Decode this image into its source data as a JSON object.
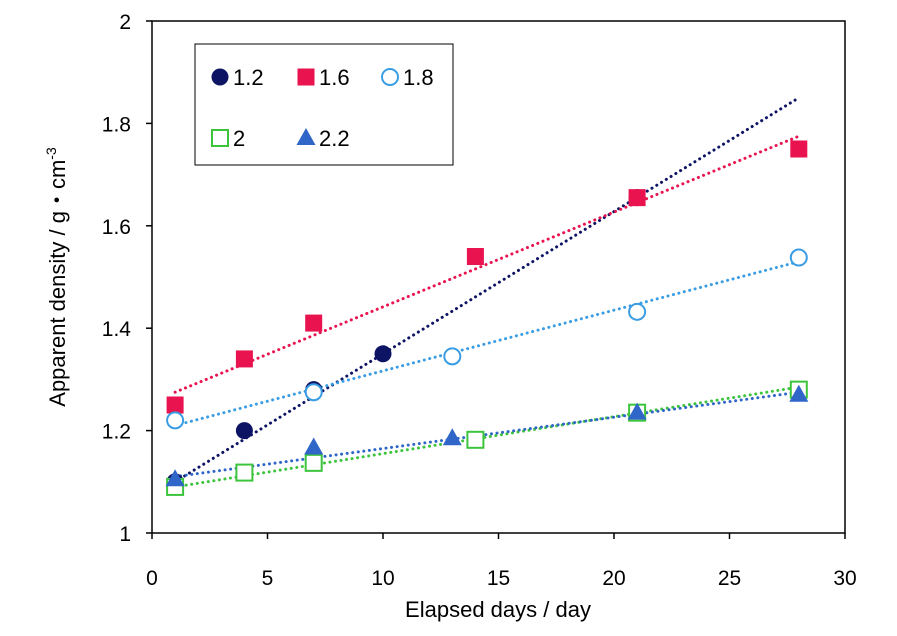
{
  "chart_data": {
    "type": "scatter",
    "xlabel": "Elapsed days / day",
    "ylabel": "Apparent density / g・cm",
    "ylabel_superscript": "-3",
    "xlim": [
      0,
      30
    ],
    "ylim": [
      1,
      2
    ],
    "x_ticks": [
      "0",
      "5",
      "10",
      "15",
      "20",
      "25",
      "30"
    ],
    "y_ticks": [
      "1",
      "1.2",
      "1.4",
      "1.6",
      "1.8",
      "2"
    ],
    "grid": false,
    "legend_position": "top-left",
    "trendlines": "dotted linear",
    "series": [
      {
        "name": "1.2",
        "marker": "circle-filled",
        "color": "#0d1463",
        "points": [
          [
            1,
            1.1
          ],
          [
            4,
            1.2
          ],
          [
            7,
            1.28
          ],
          [
            10,
            1.35
          ],
          [
            21,
            1.655
          ]
        ],
        "trend": [
          [
            1,
            1.1
          ],
          [
            28,
            1.85
          ]
        ]
      },
      {
        "name": "1.6",
        "marker": "square-filled",
        "color": "#e8134f",
        "points": [
          [
            1,
            1.25
          ],
          [
            4,
            1.34
          ],
          [
            7,
            1.41
          ],
          [
            14,
            1.54
          ],
          [
            21,
            1.655
          ],
          [
            28,
            1.75
          ]
        ],
        "trend": [
          [
            1,
            1.275
          ],
          [
            28,
            1.775
          ]
        ]
      },
      {
        "name": "1.8",
        "marker": "circle-open",
        "color": "#3a9de3",
        "points": [
          [
            1,
            1.22
          ],
          [
            7,
            1.275
          ],
          [
            13,
            1.345
          ],
          [
            21,
            1.432
          ],
          [
            28,
            1.538
          ]
        ],
        "trend": [
          [
            1,
            1.21
          ],
          [
            28,
            1.53
          ]
        ]
      },
      {
        "name": "2",
        "marker": "square-open",
        "color": "#3dc43d",
        "points": [
          [
            1,
            1.09
          ],
          [
            4,
            1.118
          ],
          [
            7,
            1.137
          ],
          [
            14,
            1.182
          ],
          [
            21,
            1.235
          ],
          [
            28,
            1.28
          ]
        ],
        "trend": [
          [
            1,
            1.09
          ],
          [
            28,
            1.285
          ]
        ]
      },
      {
        "name": "2.2",
        "marker": "triangle-filled",
        "color": "#2f66c8",
        "points": [
          [
            1,
            1.105
          ],
          [
            7,
            1.167
          ],
          [
            13,
            1.185
          ],
          [
            21,
            1.235
          ],
          [
            28,
            1.27
          ]
        ],
        "trend": [
          [
            1,
            1.11
          ],
          [
            28,
            1.275
          ]
        ]
      }
    ]
  }
}
